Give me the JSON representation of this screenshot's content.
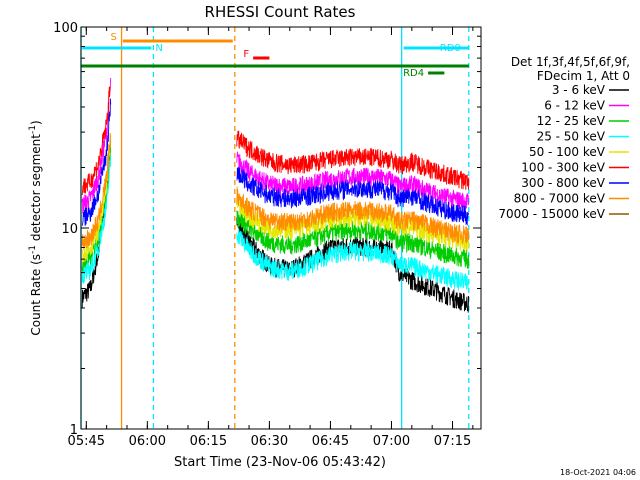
{
  "chart_data": {
    "type": "line",
    "title": "RHESSI Count Rates",
    "xlabel": "Start Time (23-Nov-06 05:43:42)",
    "ylabel_text": "Count Rate (s",
    "ylabel_sup": "-1",
    "ylabel_text2": " detector segment",
    "ylabel_sup2": "-1",
    "ylabel_end": ")",
    "y_scale": "log",
    "ylim": [
      1,
      100
    ],
    "xlim": [
      "05:43:42",
      "07:22:00"
    ],
    "x_ticks": [
      {
        "t": "05:45",
        "label": "05:45"
      },
      {
        "t": "06:00",
        "label": "06:00"
      },
      {
        "t": "06:15",
        "label": "06:15"
      },
      {
        "t": "06:30",
        "label": "06:30"
      },
      {
        "t": "06:45",
        "label": "06:45"
      },
      {
        "t": "07:00",
        "label": "07:00"
      },
      {
        "t": "07:15",
        "label": "07:15"
      }
    ],
    "y_ticks": [
      {
        "v": 1,
        "label": "1"
      },
      {
        "v": 10,
        "label": "10"
      },
      {
        "v": 100,
        "label": "100"
      }
    ],
    "legend_header": [
      "Det 1f,3f,4f,5f,6f,9f,",
      "FDecim 1, Att 0"
    ],
    "legend_placement": "right",
    "series": [
      {
        "name": "3 - 6 keV",
        "color": "#000000",
        "segments": [
          {
            "x": [
              "05:44:00",
              "05:46:00",
              "05:48:00",
              "05:50:00",
              "05:51:00"
            ],
            "y": [
              4.5,
              5.0,
              7.5,
              15.0,
              30.0
            ]
          },
          {
            "x": [
              "06:22:00",
              "06:25:00",
              "06:30:00",
              "06:35:00",
              "06:40:00",
              "06:45:00",
              "06:50:00",
              "06:55:00",
              "07:00:00",
              "07:02:00",
              "07:05:00",
              "07:10:00",
              "07:15:00",
              "07:19:00"
            ],
            "y": [
              11.0,
              8.5,
              6.5,
              6.2,
              7.0,
              8.0,
              8.2,
              8.0,
              7.8,
              6.0,
              5.5,
              5.0,
              4.5,
              4.2
            ]
          }
        ]
      },
      {
        "name": "6 - 12 keV",
        "color": "#ff00ff",
        "segments": [
          {
            "x": [
              "05:44:00",
              "05:46:00",
              "05:48:00",
              "05:50:00",
              "05:51:00"
            ],
            "y": [
              13.0,
              14.0,
              18.0,
              30.0,
              52.0
            ]
          },
          {
            "x": [
              "06:22:00",
              "06:25:00",
              "06:30:00",
              "06:35:00",
              "06:40:00",
              "06:45:00",
              "06:50:00",
              "06:55:00",
              "07:00:00",
              "07:02:00",
              "07:05:00",
              "07:10:00",
              "07:15:00",
              "07:19:00"
            ],
            "y": [
              22.0,
              19.0,
              16.5,
              16.0,
              16.5,
              17.5,
              18.0,
              18.0,
              17.5,
              16.0,
              16.5,
              15.0,
              14.0,
              13.5
            ]
          }
        ]
      },
      {
        "name": "12 - 25 keV",
        "color": "#00cc00",
        "segments": [
          {
            "x": [
              "05:44:00",
              "05:46:00",
              "05:48:00",
              "05:50:00",
              "05:51:00"
            ],
            "y": [
              6.5,
              7.0,
              9.0,
              15.0,
              26.0
            ]
          },
          {
            "x": [
              "06:22:00",
              "06:25:00",
              "06:30:00",
              "06:35:00",
              "06:40:00",
              "06:45:00",
              "06:50:00",
              "06:55:00",
              "07:00:00",
              "07:02:00",
              "07:05:00",
              "07:10:00",
              "07:15:00",
              "07:19:00"
            ],
            "y": [
              11.5,
              10.0,
              8.5,
              8.2,
              8.7,
              9.5,
              9.8,
              9.7,
              9.4,
              8.5,
              8.5,
              7.8,
              7.3,
              7.0
            ]
          }
        ]
      },
      {
        "name": "25 - 50 keV",
        "color": "#00ffff",
        "segments": [
          {
            "x": [
              "05:44:00",
              "05:46:00",
              "05:48:00",
              "05:50:00",
              "05:51:00"
            ],
            "y": [
              5.8,
              6.2,
              8.0,
              13.0,
              22.0
            ]
          },
          {
            "x": [
              "06:22:00",
              "06:25:00",
              "06:30:00",
              "06:35:00",
              "06:40:00",
              "06:45:00",
              "06:50:00",
              "06:55:00",
              "07:00:00",
              "07:02:00",
              "07:05:00",
              "07:10:00",
              "07:15:00",
              "07:19:00"
            ],
            "y": [
              9.5,
              7.8,
              6.4,
              6.1,
              6.6,
              7.4,
              7.7,
              7.6,
              7.3,
              6.6,
              6.5,
              6.0,
              5.6,
              5.3
            ]
          }
        ]
      },
      {
        "name": "50 - 100 keV",
        "color": "#e6e600",
        "segments": [
          {
            "x": [
              "05:44:00",
              "05:46:00",
              "05:48:00",
              "05:50:00",
              "05:51:00"
            ],
            "y": [
              7.5,
              8.0,
              10.0,
              16.0,
              28.0
            ]
          },
          {
            "x": [
              "06:22:00",
              "06:25:00",
              "06:30:00",
              "06:35:00",
              "06:40:00",
              "06:45:00",
              "06:50:00",
              "06:55:00",
              "07:00:00",
              "07:02:00",
              "07:05:00",
              "07:10:00",
              "07:15:00",
              "07:19:00"
            ],
            "y": [
              13.0,
              11.5,
              10.0,
              9.8,
              10.3,
              11.0,
              11.3,
              11.2,
              10.8,
              10.0,
              10.2,
              9.4,
              8.8,
              8.5
            ]
          }
        ]
      },
      {
        "name": "100 - 300 keV",
        "color": "#ff0000",
        "segments": [
          {
            "x": [
              "05:44:00",
              "05:46:00",
              "05:48:00",
              "05:50:00",
              "05:51:00"
            ],
            "y": [
              16.0,
              17.0,
              21.0,
              33.0,
              55.0
            ]
          },
          {
            "x": [
              "06:22:00",
              "06:25:00",
              "06:30:00",
              "06:35:00",
              "06:40:00",
              "06:45:00",
              "06:50:00",
              "06:55:00",
              "07:00:00",
              "07:02:00",
              "07:05:00",
              "07:10:00",
              "07:15:00",
              "07:19:00"
            ],
            "y": [
              28.0,
              25.0,
              21.5,
              20.5,
              21.0,
              22.0,
              22.5,
              22.5,
              22.0,
              20.5,
              21.5,
              19.5,
              18.0,
              17.0
            ]
          }
        ]
      },
      {
        "name": "300 - 800 keV",
        "color": "#0000ff",
        "segments": [
          {
            "x": [
              "05:44:00",
              "05:46:00",
              "05:48:00",
              "05:50:00",
              "05:51:00"
            ],
            "y": [
              11.0,
              12.0,
              15.0,
              24.0,
              42.0
            ]
          },
          {
            "x": [
              "06:22:00",
              "06:25:00",
              "06:30:00",
              "06:35:00",
              "06:40:00",
              "06:45:00",
              "06:50:00",
              "06:55:00",
              "07:00:00",
              "07:02:00",
              "07:05:00",
              "07:10:00",
              "07:15:00",
              "07:19:00"
            ],
            "y": [
              19.0,
              16.5,
              14.5,
              14.0,
              14.5,
              15.3,
              15.8,
              15.7,
              15.3,
              14.0,
              14.5,
              13.0,
              12.0,
              11.5
            ]
          }
        ]
      },
      {
        "name": "800 - 7000 keV",
        "color": "#ff8c00",
        "segments": [
          {
            "x": [
              "05:44:00",
              "05:46:00",
              "05:48:00",
              "05:50:00",
              "05:51:00"
            ],
            "y": [
              8.5,
              9.0,
              11.0,
              18.0,
              30.0
            ]
          },
          {
            "x": [
              "06:22:00",
              "06:25:00",
              "06:30:00",
              "06:35:00",
              "06:40:00",
              "06:45:00",
              "06:50:00",
              "06:55:00",
              "07:00:00",
              "07:02:00",
              "07:05:00",
              "07:10:00",
              "07:15:00",
              "07:19:00"
            ],
            "y": [
              14.5,
              12.5,
              11.0,
              10.7,
              11.2,
              12.0,
              12.3,
              12.2,
              11.8,
              10.8,
              11.0,
              10.2,
              9.5,
              9.2
            ]
          }
        ]
      },
      {
        "name": "7000 - 15000 keV",
        "color": "#8b5a00",
        "segments": []
      }
    ],
    "flags": [
      {
        "label": "S",
        "color": "#ff8c00",
        "y": 41,
        "from": "05:54:00",
        "to": "06:21:00"
      },
      {
        "label": "N",
        "color": "#00e5ff",
        "y": 48,
        "from": "05:44:00",
        "to": "06:01:00"
      },
      {
        "label": "F",
        "color": "#ff0000",
        "y": 58,
        "from": "06:26:00",
        "to": "06:30:00"
      },
      {
        "label": "RD0",
        "color": "#00e5ff",
        "y": 48,
        "from": "07:03:00",
        "to": "07:19:00"
      },
      {
        "label": "RD4",
        "color": "#008000",
        "y": 73,
        "from": "07:09:00",
        "to": "07:13:00"
      }
    ],
    "baseline_bar": {
      "color": "#008000",
      "y": 66,
      "from": "05:43:42",
      "to": "07:19:00"
    },
    "vlines": [
      {
        "t": "05:43:42",
        "color": "#00e5ff",
        "style": "solid"
      },
      {
        "t": "05:53:40",
        "color": "#ff8c00",
        "style": "solid"
      },
      {
        "t": "06:01:30",
        "color": "#00e5ff",
        "style": "dashed"
      },
      {
        "t": "06:21:30",
        "color": "#ff8c00",
        "style": "dashed"
      },
      {
        "t": "07:02:30",
        "color": "#00e5ff",
        "style": "solid"
      },
      {
        "t": "07:19:00",
        "color": "#00e5ff",
        "style": "dashed"
      }
    ]
  },
  "footer": {
    "timestamp": "18-Oct-2021 04:06"
  }
}
